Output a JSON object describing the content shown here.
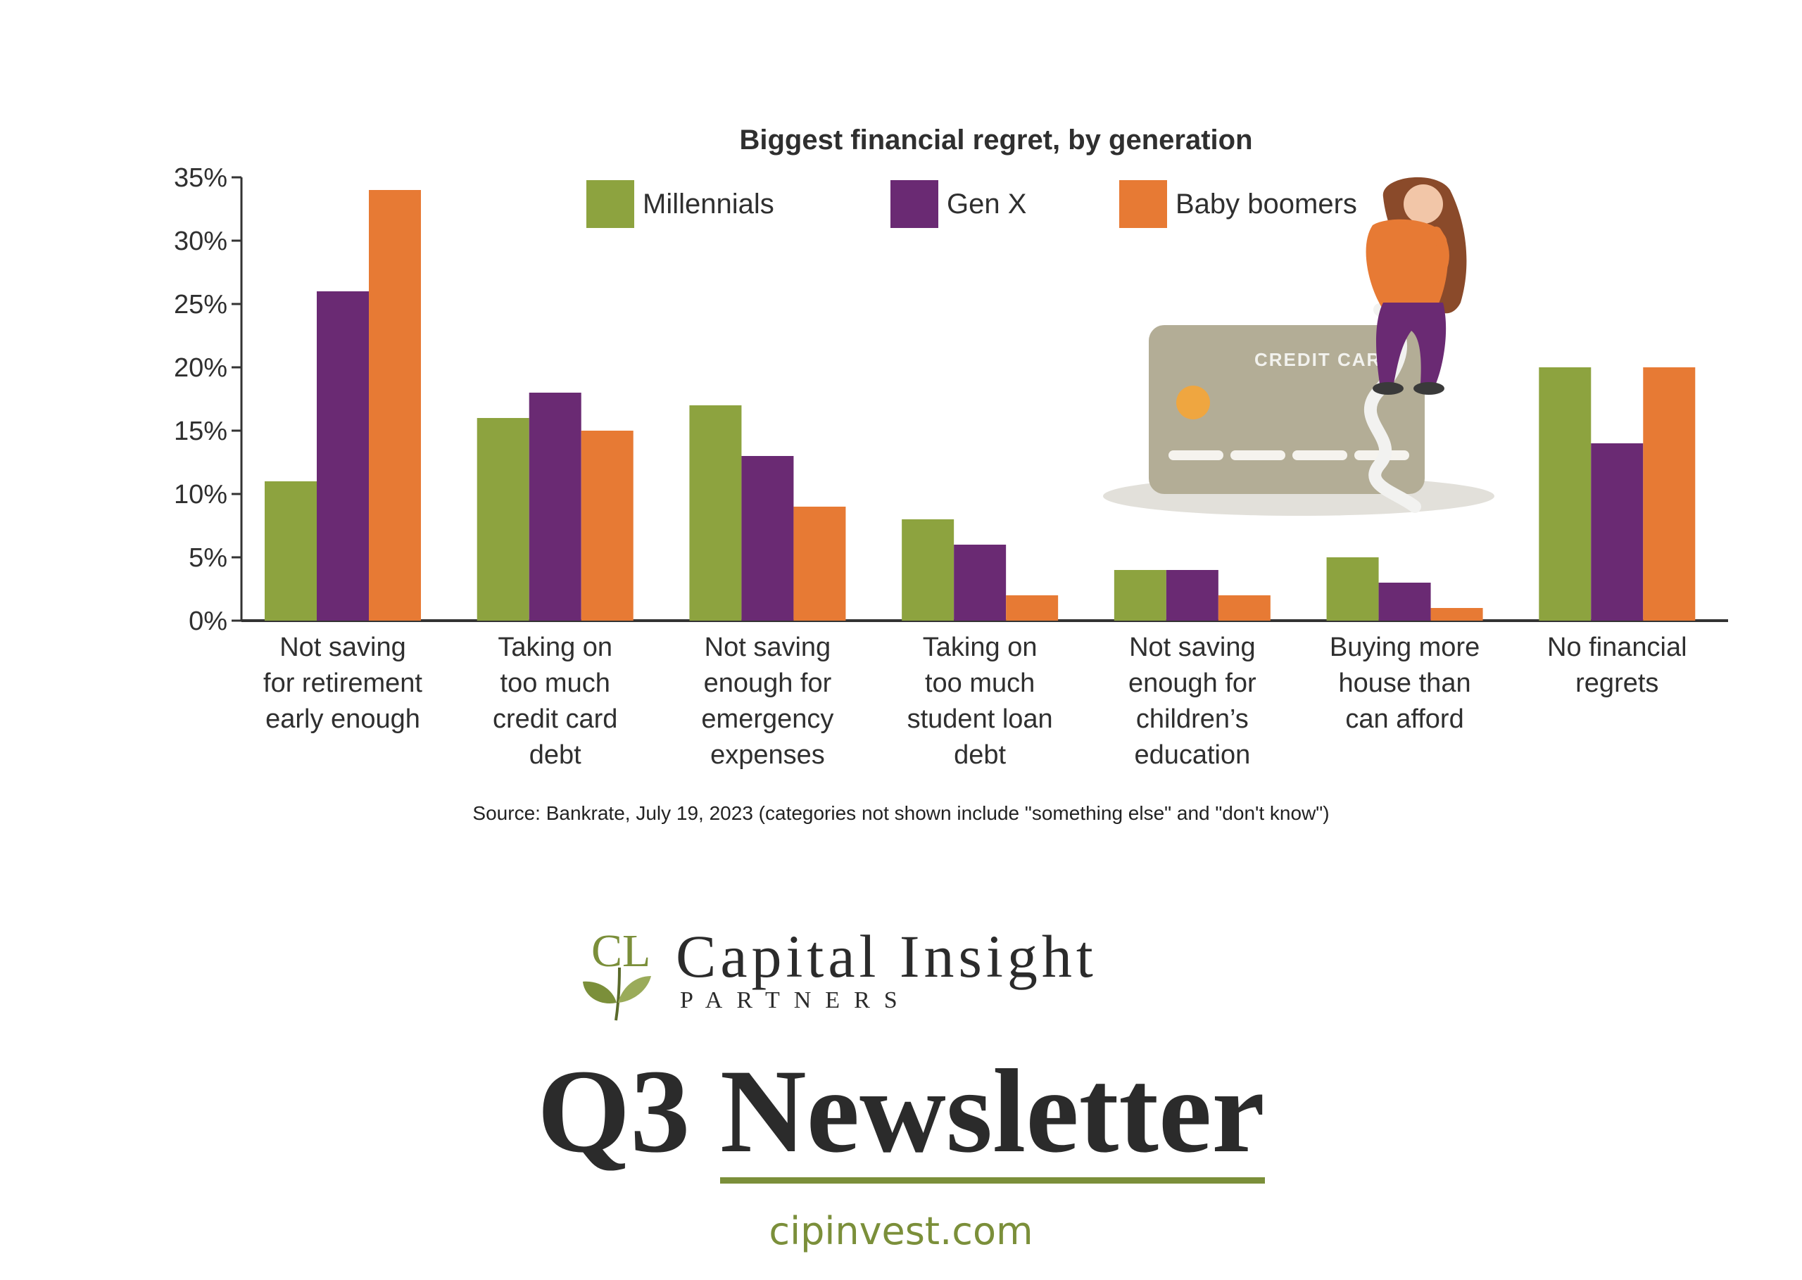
{
  "chart_data": {
    "type": "bar",
    "title": "Biggest financial regret, by generation",
    "xlabel": "",
    "ylabel": "",
    "ylim": [
      0,
      35
    ],
    "y_ticks": [
      "0%",
      "5%",
      "10%",
      "15%",
      "20%",
      "25%",
      "30%",
      "35%"
    ],
    "grid": false,
    "legend_position": "top",
    "categories": [
      [
        "Not saving",
        "for retirement",
        "early enough"
      ],
      [
        "Taking on",
        "too much",
        "credit card",
        "debt"
      ],
      [
        "Not saving",
        "enough for",
        "emergency",
        "expenses"
      ],
      [
        "Taking on",
        "too much",
        "student loan",
        "debt"
      ],
      [
        "Not saving",
        "enough for",
        "children’s",
        "education"
      ],
      [
        "Buying more",
        "house than",
        "can afford"
      ],
      [
        "No financial",
        "regrets"
      ]
    ],
    "series": [
      {
        "name": "Millennials",
        "color": "#8da33f",
        "values": [
          11,
          16,
          17,
          8,
          4,
          5,
          20
        ]
      },
      {
        "name": "Gen X",
        "color": "#6a2a73",
        "values": [
          26,
          18,
          13,
          6,
          4,
          3,
          14
        ]
      },
      {
        "name": "Baby boomers",
        "color": "#e77a34",
        "values": [
          34,
          15,
          9,
          2,
          2,
          1,
          20
        ]
      }
    ]
  },
  "illustration": {
    "description_icon": "credit-card-woman-icon",
    "card_text": "CREDIT CARD"
  },
  "source": "Source: Bankrate, July 19, 2023 (categories not shown include \"something else\" and \"don't know\")",
  "logo": {
    "monogram": "CL",
    "name": "Capital Insight",
    "sub": "PARTNERS"
  },
  "newsletter": {
    "part1": "Q3",
    "part2": "Newsletter"
  },
  "website": "cipinvest.com",
  "colors": {
    "accent": "#7b8f3a",
    "text": "#2b2b2b"
  }
}
